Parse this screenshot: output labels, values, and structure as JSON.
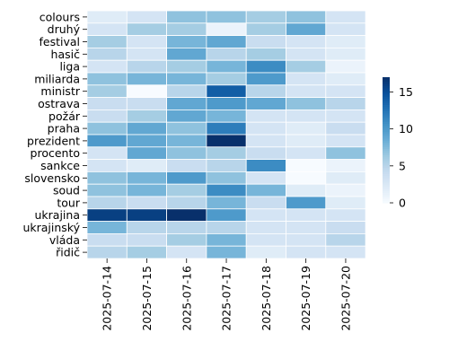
{
  "chart_data": {
    "type": "heatmap",
    "title": "",
    "xlabel": "",
    "ylabel": "",
    "x": [
      "2025-07-14",
      "2025-07-15",
      "2025-07-16",
      "2025-07-17",
      "2025-07-18",
      "2025-07-19",
      "2025-07-20"
    ],
    "y": [
      "colours",
      "druhý",
      "festival",
      "hasič",
      "liga",
      "miliarda",
      "ministr",
      "ostrava",
      "požár",
      "praha",
      "prezident",
      "procento",
      "sankce",
      "slovensko",
      "soud",
      "tour",
      "ukrajina",
      "ukrajinský",
      "vláda",
      "řidič"
    ],
    "values": [
      [
        2,
        3,
        7,
        7,
        6,
        7,
        3
      ],
      [
        3,
        6,
        6,
        1,
        6,
        9,
        3
      ],
      [
        6,
        3,
        8,
        9,
        4,
        3,
        2
      ],
      [
        5,
        3,
        9,
        5,
        6,
        3,
        2
      ],
      [
        3,
        5,
        6,
        8,
        11,
        6,
        1
      ],
      [
        7,
        8,
        8,
        6,
        10,
        3,
        2
      ],
      [
        6,
        0,
        5,
        14,
        5,
        3,
        3
      ],
      [
        4,
        4,
        9,
        10,
        9,
        7,
        5
      ],
      [
        4,
        6,
        9,
        8,
        3,
        3,
        3
      ],
      [
        7,
        9,
        7,
        12,
        3,
        2,
        4
      ],
      [
        10,
        9,
        8,
        17,
        3,
        2,
        3
      ],
      [
        3,
        9,
        7,
        6,
        4,
        3,
        7
      ],
      [
        3,
        2,
        4,
        5,
        11,
        0,
        1
      ],
      [
        7,
        8,
        10,
        7,
        3,
        0,
        2
      ],
      [
        7,
        8,
        6,
        11,
        8,
        2,
        1
      ],
      [
        5,
        4,
        5,
        8,
        4,
        10,
        2
      ],
      [
        16,
        16,
        17,
        10,
        3,
        3,
        3
      ],
      [
        8,
        5,
        5,
        5,
        3,
        3,
        4
      ],
      [
        4,
        4,
        6,
        8,
        3,
        3,
        5
      ],
      [
        5,
        6,
        3,
        8,
        2,
        3,
        3
      ]
    ],
    "vmin": 0,
    "vmax": 17,
    "colorbar_ticks": [
      0,
      5,
      10,
      15
    ],
    "colormap": "Blues",
    "cell_border_color": "#ffffff"
  }
}
